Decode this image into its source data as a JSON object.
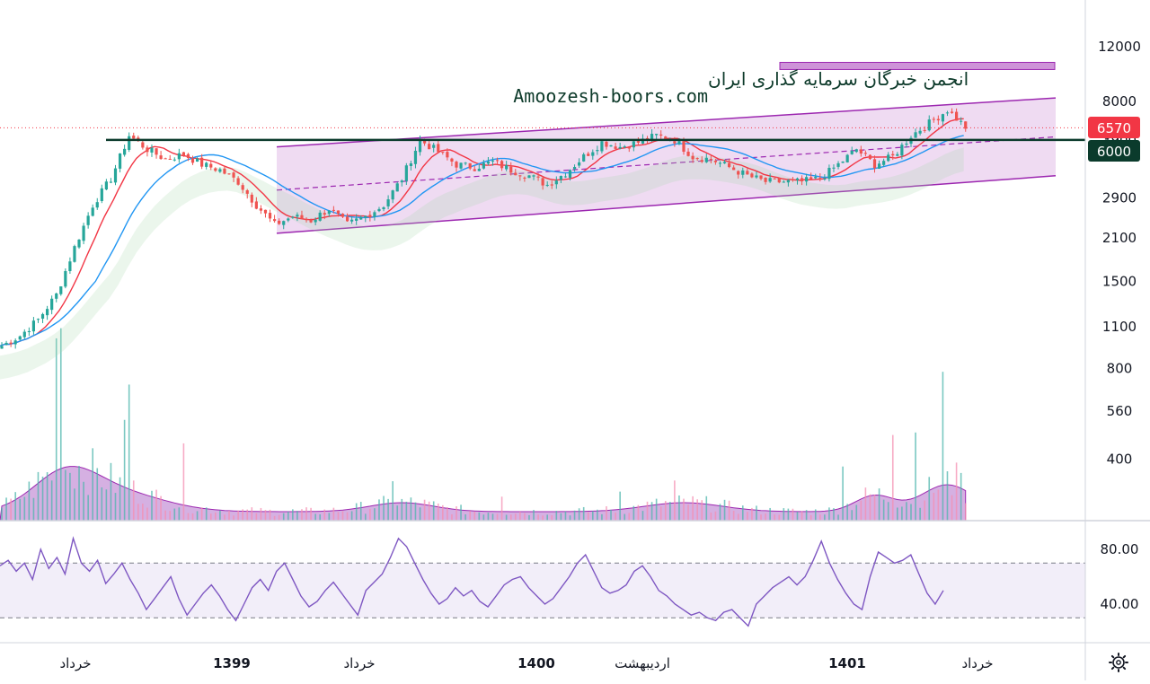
{
  "watermark": {
    "line1": "انجمن خبرگان سرمایه گذاری ایران",
    "line2": "Amoozesh-boors.com"
  },
  "price_axis": {
    "ticks": [
      "12000",
      "8000",
      "3900",
      "2900",
      "2100",
      "1500",
      "1100",
      "800",
      "560",
      "400"
    ],
    "last_price_tag": "6570",
    "level_tag": "6000",
    "colors": {
      "last_price": "#f23645",
      "level": "#0b3b2c"
    }
  },
  "rsi_axis": {
    "ticks": [
      "80.00",
      "40.00"
    ]
  },
  "time_axis": {
    "labels": [
      "خرداد",
      "1399",
      "خرداد",
      "1400",
      "اردیبهشت",
      "1401",
      "خرداد"
    ],
    "bold": [
      false,
      true,
      false,
      true,
      false,
      true,
      false
    ]
  },
  "settings_icon": "gear-icon",
  "chart_data": [
    {
      "type": "candlestick",
      "scale": "log",
      "y_ticks": [
        400,
        560,
        800,
        1100,
        1500,
        2100,
        2900,
        3900,
        6000,
        8000,
        12000
      ],
      "last_price": 6570,
      "horizontal_level": 6000,
      "close_path": [
        {
          "x": 0,
          "close": 1300
        },
        {
          "x": 4,
          "close": 1400
        },
        {
          "x": 8,
          "close": 1580
        },
        {
          "x": 12,
          "close": 1900
        },
        {
          "x": 16,
          "close": 2700
        },
        {
          "x": 20,
          "close": 3700
        },
        {
          "x": 24,
          "close": 4500
        },
        {
          "x": 28,
          "close": 6200
        },
        {
          "x": 32,
          "close": 5600
        },
        {
          "x": 36,
          "close": 5200
        },
        {
          "x": 40,
          "close": 5400
        },
        {
          "x": 44,
          "close": 5000
        },
        {
          "x": 48,
          "close": 4800
        },
        {
          "x": 52,
          "close": 4400
        },
        {
          "x": 56,
          "close": 3700
        },
        {
          "x": 60,
          "close": 3200
        },
        {
          "x": 64,
          "close": 3400
        },
        {
          "x": 68,
          "close": 3300
        },
        {
          "x": 72,
          "close": 3600
        },
        {
          "x": 76,
          "close": 3200
        },
        {
          "x": 80,
          "close": 3400
        },
        {
          "x": 84,
          "close": 3700
        },
        {
          "x": 88,
          "close": 4500
        },
        {
          "x": 92,
          "close": 6000
        },
        {
          "x": 96,
          "close": 5500
        },
        {
          "x": 100,
          "close": 5000
        },
        {
          "x": 104,
          "close": 4900
        },
        {
          "x": 108,
          "close": 5100
        },
        {
          "x": 112,
          "close": 4800
        },
        {
          "x": 116,
          "close": 4600
        },
        {
          "x": 120,
          "close": 4300
        },
        {
          "x": 124,
          "close": 4700
        },
        {
          "x": 128,
          "close": 5300
        },
        {
          "x": 132,
          "close": 5900
        },
        {
          "x": 136,
          "close": 5700
        },
        {
          "x": 140,
          "close": 5900
        },
        {
          "x": 144,
          "close": 6200
        },
        {
          "x": 148,
          "close": 6000
        },
        {
          "x": 152,
          "close": 5300
        },
        {
          "x": 156,
          "close": 5200
        },
        {
          "x": 160,
          "close": 4900
        },
        {
          "x": 164,
          "close": 4600
        },
        {
          "x": 168,
          "close": 4400
        },
        {
          "x": 172,
          "close": 4400
        },
        {
          "x": 176,
          "close": 4400
        },
        {
          "x": 180,
          "close": 4500
        },
        {
          "x": 184,
          "close": 5000
        },
        {
          "x": 188,
          "close": 5600
        },
        {
          "x": 192,
          "close": 5000
        },
        {
          "x": 196,
          "close": 5300
        },
        {
          "x": 200,
          "close": 6200
        },
        {
          "x": 204,
          "close": 6800
        },
        {
          "x": 208,
          "close": 7500
        },
        {
          "x": 212,
          "close": 6600
        }
      ],
      "channel": {
        "upper_start": 5700,
        "upper_end": 8200,
        "lower_start": 3000,
        "lower_end": 4600
      },
      "purple_box_level": 10400
    },
    {
      "type": "area",
      "name": "volume",
      "note": "purple volume-average area with pink/teal volume bars"
    },
    {
      "type": "line",
      "name": "RSI",
      "bands": [
        70,
        30
      ],
      "y_ticks": [
        80,
        40
      ],
      "values": [
        68,
        72,
        64,
        70,
        58,
        80,
        66,
        74,
        62,
        88,
        70,
        64,
        72,
        55,
        62,
        70,
        58,
        48,
        36,
        44,
        52,
        60,
        44,
        32,
        40,
        48,
        54,
        46,
        36,
        28,
        40,
        52,
        58,
        50,
        64,
        70,
        58,
        46,
        38,
        42,
        50,
        56,
        48,
        40,
        32,
        50,
        56,
        62,
        74,
        88,
        82,
        70,
        58,
        48,
        40,
        44,
        52,
        46,
        50,
        42,
        38,
        46,
        54,
        58,
        60,
        52,
        46,
        40,
        44,
        52,
        60,
        70,
        76,
        64,
        52,
        48,
        50,
        54,
        64,
        68,
        60,
        50,
        46,
        40,
        36,
        32,
        34,
        30,
        28,
        34,
        36,
        30,
        24,
        40,
        46,
        52,
        56,
        60,
        54,
        60,
        72,
        86,
        70,
        58,
        48,
        40,
        36,
        60,
        78,
        74,
        70,
        72,
        76,
        62,
        48,
        40,
        50
      ]
    }
  ]
}
